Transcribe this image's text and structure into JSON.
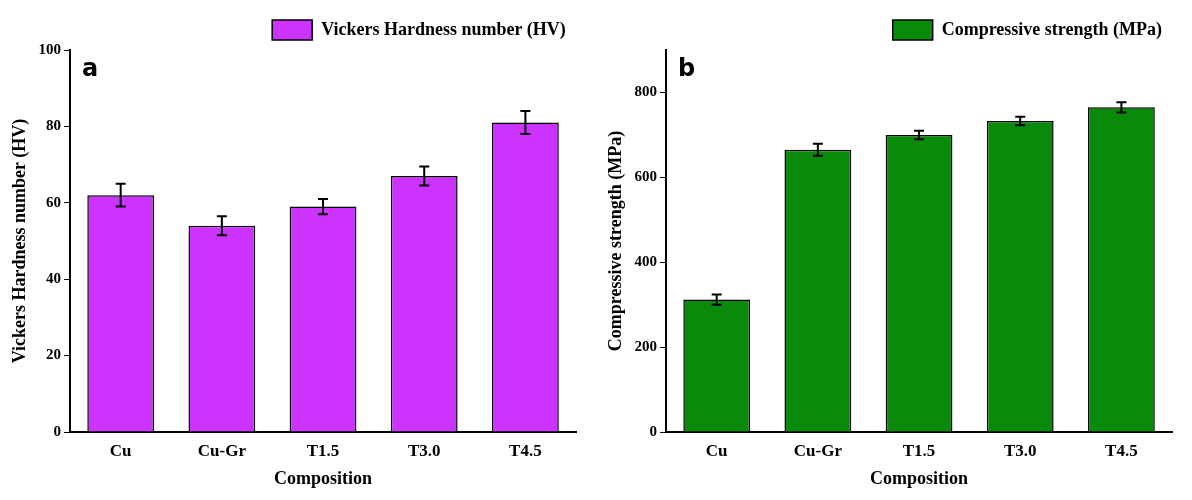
{
  "chart_data": [
    {
      "type": "bar",
      "xlabel": "Composition",
      "ylabel": "Vickers Hardness number (HV)",
      "annotations": [
        "a"
      ],
      "categories": [
        "Cu",
        "Cu-Gr",
        "T1.5",
        "T3.0",
        "T4.5"
      ],
      "series": [
        {
          "name": "Vickers Hardness number (HV)",
          "color": "#cc33ff",
          "values": [
            62,
            54,
            59,
            67,
            81
          ],
          "errors": [
            3,
            2.5,
            2,
            2.5,
            3
          ]
        }
      ],
      "ylim": [
        0,
        100
      ],
      "yticks": [
        0,
        20,
        40,
        60,
        80,
        100
      ],
      "grid": false,
      "legend": "top right"
    },
    {
      "type": "bar",
      "xlabel": "Composition",
      "ylabel": "Compressive strength (MPa)",
      "annotations": [
        "b"
      ],
      "categories": [
        "Cu",
        "Cu-Gr",
        "T1.5",
        "T3.0",
        "T4.5"
      ],
      "series": [
        {
          "name": "Compressive strength (MPa)",
          "color": "#0a8a0a",
          "values": [
            312,
            665,
            700,
            733,
            765
          ],
          "errors": [
            12,
            14,
            10,
            10,
            12
          ]
        }
      ],
      "ylim": [
        0,
        900
      ],
      "yticks": [
        0,
        200,
        400,
        600,
        800
      ],
      "grid": false,
      "legend": "top right"
    }
  ]
}
